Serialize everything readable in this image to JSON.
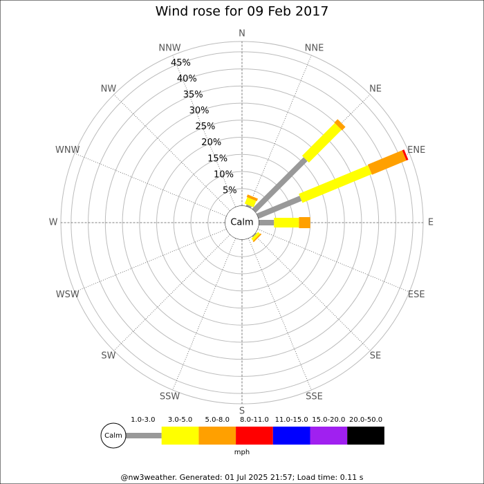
{
  "chart_data": {
    "type": "windrose",
    "title": "Wind rose for 09 Feb 2017",
    "directions": [
      "N",
      "NNE",
      "NE",
      "ENE",
      "E",
      "ESE",
      "SE",
      "SSE",
      "S",
      "SSW",
      "SW",
      "WSW",
      "W",
      "WNW",
      "NW",
      "NNW"
    ],
    "calm_label": "Calm",
    "units": "mph",
    "rlim": [
      0,
      48
    ],
    "rticks": [
      {
        "value": 5,
        "label": "5%"
      },
      {
        "value": 10,
        "label": "10%"
      },
      {
        "value": 15,
        "label": "15%"
      },
      {
        "value": 20,
        "label": "20%"
      },
      {
        "value": 25,
        "label": "25%"
      },
      {
        "value": 30,
        "label": "30%"
      },
      {
        "value": 35,
        "label": "35%"
      },
      {
        "value": 40,
        "label": "40%"
      },
      {
        "value": 45,
        "label": "45%"
      }
    ],
    "series": [
      {
        "name": "1.0-3.0",
        "color": "#999999",
        "values": [
          0,
          0.5,
          21.3,
          13.6,
          4.4,
          0,
          0.3,
          0,
          0,
          0,
          0,
          0,
          0,
          0,
          0,
          0
        ]
      },
      {
        "name": "3.0-5.0",
        "color": "#ffff00",
        "values": [
          0,
          2,
          13.5,
          21.9,
          7.3,
          0,
          0.8,
          0,
          0,
          0,
          0,
          0,
          0,
          0,
          0,
          0
        ]
      },
      {
        "name": "5.0-8.0",
        "color": "#ffa000",
        "values": [
          0,
          0.8,
          1.4,
          10.9,
          3.3,
          0,
          0.4,
          0,
          0,
          0,
          0,
          0,
          0,
          0,
          0,
          0
        ]
      },
      {
        "name": "8.0-11.0",
        "color": "#ff0000",
        "values": [
          0,
          0,
          0,
          0.6,
          0,
          0,
          0,
          0,
          0,
          0,
          0,
          0,
          0,
          0,
          0,
          0
        ]
      },
      {
        "name": "11.0-15.0",
        "color": "#0000ff",
        "values": [
          0,
          0,
          0,
          0,
          0,
          0,
          0,
          0,
          0,
          0,
          0,
          0,
          0,
          0,
          0,
          0
        ]
      },
      {
        "name": "15.0-20.0",
        "color": "#a020f0",
        "values": [
          0,
          0,
          0,
          0,
          0,
          0,
          0,
          0,
          0,
          0,
          0,
          0,
          0,
          0,
          0,
          0
        ]
      },
      {
        "name": "20.0-50.0",
        "color": "#000000",
        "values": [
          0,
          0,
          0,
          0,
          0,
          0,
          0,
          0,
          0,
          0,
          0,
          0,
          0,
          0,
          0,
          0
        ]
      }
    ],
    "footer": "@nw3weather. Generated: 01 Jul 2025 21:57; Load time: 0.11 s"
  }
}
